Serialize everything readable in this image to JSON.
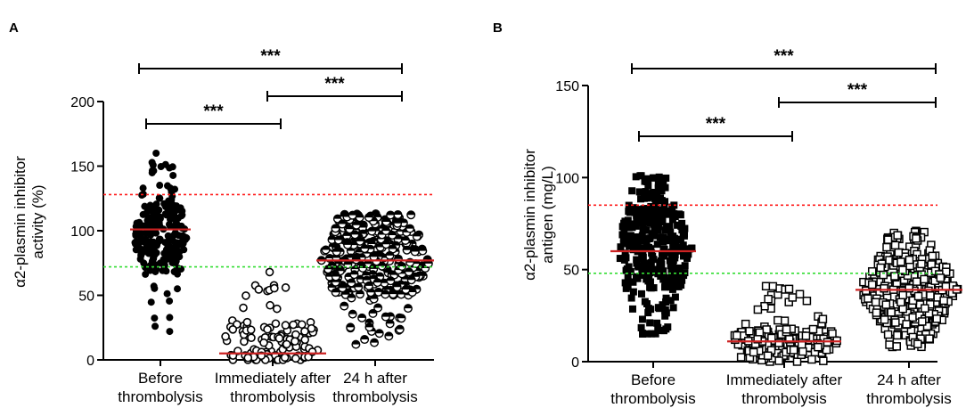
{
  "chart_data": [
    {
      "type": "scatter",
      "subtype": "dot-plot",
      "panel": "A",
      "ylabel": "α2-plasmin inhibitor activity (%)",
      "ylabel_lines": [
        "α2-plasmin inhibitor",
        "activity (%)"
      ],
      "ylim": [
        0,
        200
      ],
      "yticks": [
        0,
        50,
        100,
        150,
        200
      ],
      "categories": [
        {
          "lines": [
            "Before",
            "thrombolysis"
          ]
        },
        {
          "lines": [
            "Immediately after",
            "thrombolysis"
          ]
        },
        {
          "lines": [
            "24 h after",
            "thrombolysis"
          ]
        }
      ],
      "marker": "filled-circle",
      "groups": [
        {
          "median": 101,
          "min": 22,
          "max": 160,
          "dense_low": 68,
          "dense_high": 121,
          "n": 230
        },
        {
          "median": 5,
          "min": 0,
          "max": 68,
          "dense_low": 0,
          "dense_high": 30,
          "n": 110
        },
        {
          "median": 77,
          "min": 12,
          "max": 113,
          "dense_low": 50,
          "dense_high": 105,
          "n": 330
        }
      ],
      "marker_styles": [
        "filled-circle",
        "open-circle",
        "half-filled-circle"
      ],
      "reference_lines": [
        {
          "value": 128,
          "color": "#ff1a1a"
        },
        {
          "value": 72,
          "color": "#33dd33"
        }
      ],
      "significance": [
        {
          "from": 0,
          "to": 2,
          "label": "***",
          "level": 3
        },
        {
          "from": 0,
          "to": 1,
          "label": "***",
          "level": 1
        },
        {
          "from": 1,
          "to": 2,
          "label": "***",
          "level": 2
        }
      ]
    },
    {
      "type": "scatter",
      "subtype": "dot-plot",
      "panel": "B",
      "ylabel": "α2-plasmin inhibitor antigen (mg/L)",
      "ylabel_lines": [
        "α2-plasmin inhibitor",
        "antigen (mg/L)"
      ],
      "ylim": [
        0,
        150
      ],
      "yticks": [
        0,
        50,
        100,
        150
      ],
      "categories": [
        {
          "lines": [
            "Before",
            "thrombolysis"
          ]
        },
        {
          "lines": [
            "Immediately after",
            "thrombolysis"
          ]
        },
        {
          "lines": [
            "24 h after",
            "thrombolysis"
          ]
        }
      ],
      "groups": [
        {
          "median": 60,
          "min": 15,
          "max": 101,
          "dense_low": 40,
          "dense_high": 82,
          "n": 330
        },
        {
          "median": 11,
          "min": 0,
          "max": 41,
          "dense_low": 4,
          "dense_high": 18,
          "n": 170
        },
        {
          "median": 39,
          "min": 8,
          "max": 71,
          "dense_low": 20,
          "dense_high": 58,
          "n": 380
        }
      ],
      "marker_styles": [
        "filled-square",
        "open-square",
        "open-square"
      ],
      "reference_lines": [
        {
          "value": 85,
          "color": "#ff1a1a"
        },
        {
          "value": 48,
          "color": "#33dd33"
        }
      ],
      "significance": [
        {
          "from": 0,
          "to": 2,
          "label": "***",
          "level": 3
        },
        {
          "from": 0,
          "to": 1,
          "label": "***",
          "level": 1
        },
        {
          "from": 1,
          "to": 2,
          "label": "***",
          "level": 2
        }
      ]
    }
  ],
  "median_line_color": "#cc2222"
}
